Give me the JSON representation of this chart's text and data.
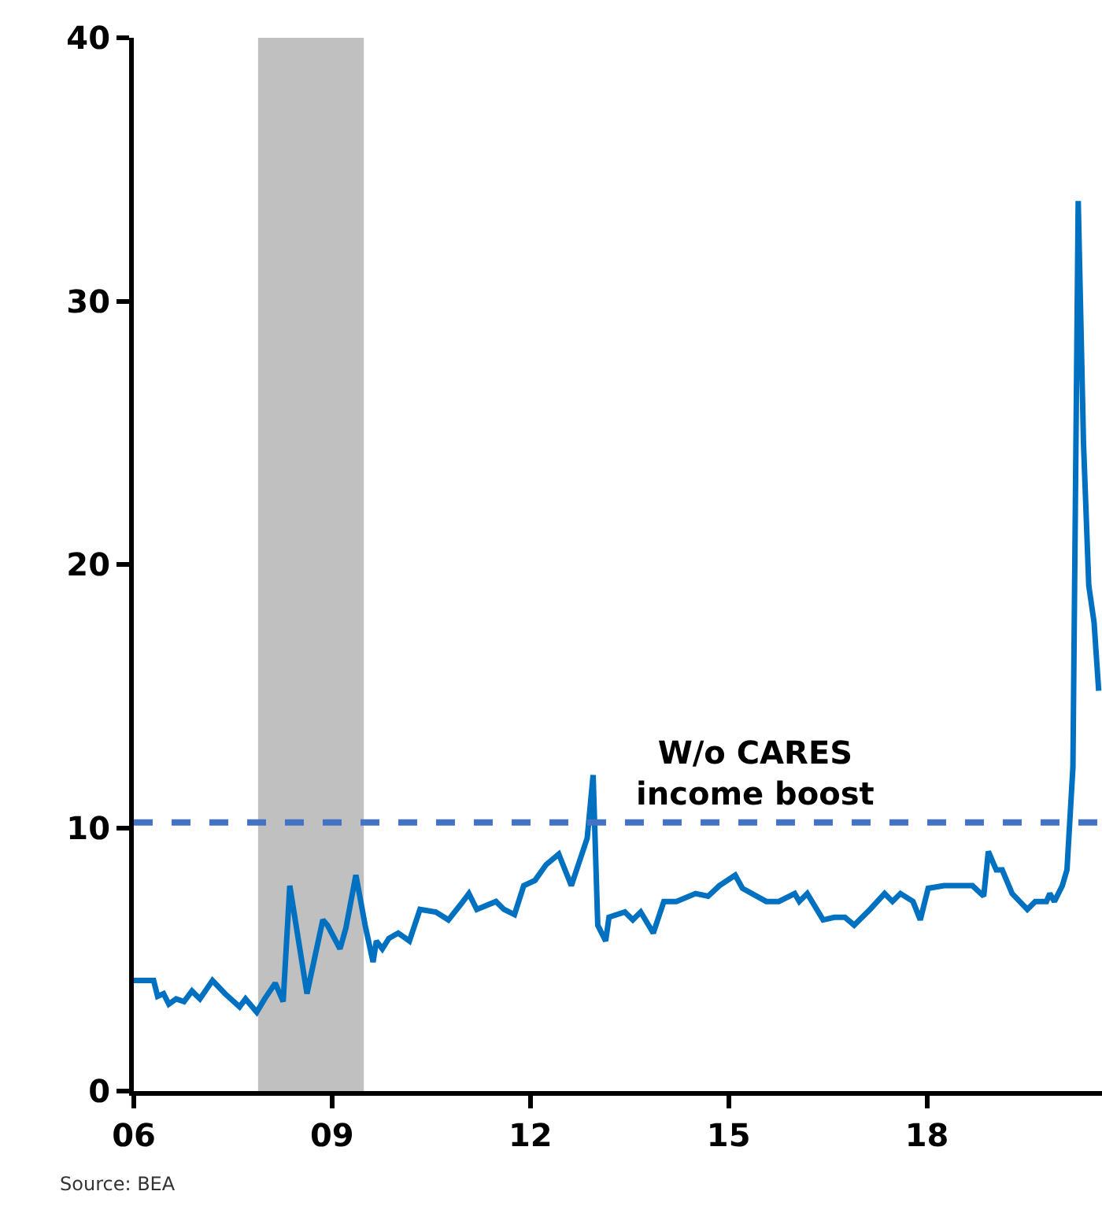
{
  "chart_data": {
    "type": "line",
    "x": [
      2006.0,
      2006.3,
      2006.36,
      2006.45,
      2006.53,
      2006.64,
      2006.76,
      2006.88,
      2007.0,
      2007.19,
      2007.38,
      2007.6,
      2007.69,
      2007.86,
      2007.98,
      2008.14,
      2008.26,
      2008.36,
      2008.62,
      2008.86,
      2008.93,
      2009.12,
      2009.21,
      2009.36,
      2009.5,
      2009.62,
      2009.67,
      2009.76,
      2009.86,
      2010.0,
      2010.17,
      2010.33,
      2010.57,
      2010.76,
      2010.95,
      2011.07,
      2011.19,
      2011.48,
      2011.6,
      2011.76,
      2011.9,
      2012.07,
      2012.24,
      2012.43,
      2012.62,
      2012.86,
      2012.95,
      2013.02,
      2013.14,
      2013.19,
      2013.43,
      2013.55,
      2013.67,
      2013.86,
      2014.02,
      2014.21,
      2014.5,
      2014.69,
      2014.86,
      2015.1,
      2015.21,
      2015.57,
      2015.76,
      2016.0,
      2016.07,
      2016.19,
      2016.43,
      2016.6,
      2016.76,
      2016.9,
      2017.14,
      2017.36,
      2017.48,
      2017.6,
      2017.79,
      2017.9,
      2018.02,
      2018.26,
      2018.5,
      2018.69,
      2018.86,
      2018.93,
      2019.05,
      2019.14,
      2019.29,
      2019.52,
      2019.64,
      2019.81,
      2019.86,
      2019.93,
      2020.05,
      2020.12,
      2020.21,
      2020.29,
      2020.37,
      2020.45,
      2020.53,
      2020.6
    ],
    "series": [
      {
        "color": "#0070c0",
        "values": [
          4.2,
          4.2,
          3.6,
          3.7,
          3.3,
          3.5,
          3.4,
          3.8,
          3.5,
          4.2,
          3.7,
          3.2,
          3.5,
          3.0,
          3.5,
          4.1,
          3.4,
          7.8,
          3.7,
          6.5,
          6.3,
          5.4,
          6.2,
          8.2,
          6.3,
          4.9,
          5.7,
          5.4,
          5.8,
          6.0,
          5.7,
          6.9,
          6.8,
          6.5,
          7.1,
          7.5,
          6.9,
          7.2,
          6.9,
          6.7,
          7.8,
          8.0,
          8.6,
          9.0,
          7.8,
          9.6,
          12.0,
          6.3,
          5.7,
          6.6,
          6.8,
          6.5,
          6.8,
          6.0,
          7.2,
          7.2,
          7.5,
          7.4,
          7.8,
          8.2,
          7.7,
          7.2,
          7.2,
          7.5,
          7.2,
          7.5,
          6.5,
          6.6,
          6.6,
          6.3,
          6.9,
          7.5,
          7.2,
          7.5,
          7.2,
          6.5,
          7.7,
          7.8,
          7.8,
          7.8,
          7.4,
          9.1,
          8.4,
          8.4,
          7.5,
          6.9,
          7.2,
          7.2,
          7.5,
          7.2,
          7.8,
          8.4,
          12.3,
          33.8,
          24.6,
          19.2,
          17.8,
          15.2
        ]
      }
    ],
    "xlim": [
      2006,
      2020.65
    ],
    "xticks": [
      {
        "value": 2006,
        "label": "06"
      },
      {
        "value": 2009,
        "label": "09"
      },
      {
        "value": 2012,
        "label": "12"
      },
      {
        "value": 2015,
        "label": "15"
      },
      {
        "value": 2018,
        "label": "18"
      }
    ],
    "ylim": [
      0,
      40
    ],
    "yticks": [
      0,
      10,
      20,
      30,
      40
    ],
    "ref_lines": [
      {
        "axis": "y",
        "value": 10.2,
        "label": "W/o CARES\nincome boost",
        "color": "#4472c4",
        "line_style": "dashed"
      }
    ],
    "bands": [
      {
        "axis": "x",
        "from": 2007.88,
        "to": 2009.48,
        "color": "#c0c0c0"
      }
    ],
    "annotations": [
      "Source: BEA"
    ],
    "grid": false,
    "marker": "none",
    "line_style": "solid"
  }
}
